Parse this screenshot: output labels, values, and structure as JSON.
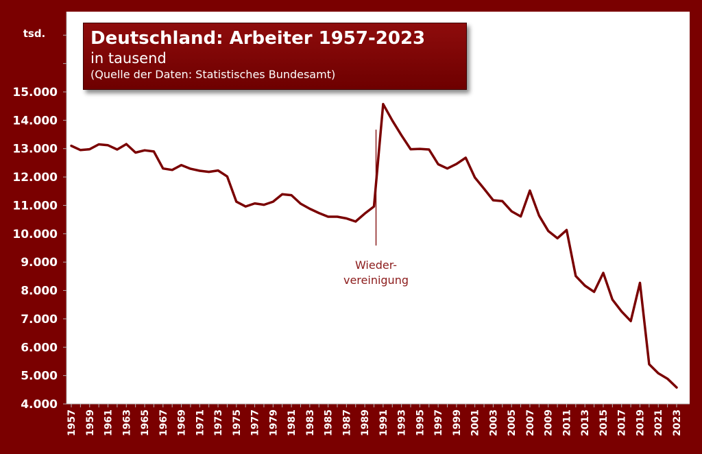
{
  "title_box": {
    "title": "Deutschland: Arbeiter 1957-2023",
    "subtitle": "in tausend",
    "source": "(Quelle der Daten: Statistisches Bundesamt)"
  },
  "colors": {
    "frame": "#7a0000",
    "line": "#7a0000",
    "plot_background": "#ffffff",
    "annotation_text": "#8b1a1a"
  },
  "chart_data": {
    "type": "line",
    "title": "Deutschland: Arbeiter 1957-2023",
    "subtitle": "in tausend",
    "source": "(Quelle der Daten: Statistisches Bundesamt)",
    "ylabel": "tsd.",
    "xlabel": "",
    "ylim": [
      4000,
      15000
    ],
    "yticks": [
      4000,
      5000,
      6000,
      7000,
      8000,
      9000,
      10000,
      11000,
      12000,
      13000,
      14000,
      15000
    ],
    "ytick_labels": [
      "4.000",
      "5.000",
      "6.000",
      "7.000",
      "8.000",
      "9.000",
      "10.000",
      "11.000",
      "12.000",
      "13.000",
      "14.000",
      "15.000"
    ],
    "xlim": [
      1957,
      2023
    ],
    "xtick_labels": [
      "1957",
      "1959",
      "1961",
      "1963",
      "1965",
      "1967",
      "1969",
      "1971",
      "1973",
      "1975",
      "1977",
      "1979",
      "1981",
      "1983",
      "1985",
      "1987",
      "1989",
      "1991",
      "1993",
      "1995",
      "1997",
      "1999",
      "2001",
      "2003",
      "2005",
      "2007",
      "2009",
      "2011",
      "2013",
      "2015",
      "2017",
      "2019",
      "2021",
      "2023"
    ],
    "grid": false,
    "legend": "none",
    "series": [
      {
        "x": [
          1957,
          1958,
          1959,
          1960,
          1961,
          1962,
          1963,
          1964,
          1965,
          1966,
          1967,
          1968,
          1969,
          1970,
          1971,
          1972,
          1973,
          1974,
          1975,
          1976,
          1977,
          1978,
          1979,
          1980,
          1981,
          1982,
          1983,
          1984,
          1985,
          1986,
          1987,
          1988,
          1989,
          1990,
          1991,
          1992,
          1993,
          1994,
          1995,
          1996,
          1997,
          1998,
          1999,
          2000,
          2001,
          2002,
          2003,
          2004,
          2005,
          2006,
          2007,
          2008,
          2009,
          2010,
          2011,
          2012,
          2013,
          2014,
          2015,
          2016,
          2017,
          2018,
          2019,
          2020,
          2021,
          2022,
          2023
        ],
        "values": [
          13100,
          12950,
          12980,
          13150,
          13120,
          12970,
          13160,
          12860,
          12940,
          12900,
          12300,
          12250,
          12420,
          12290,
          12220,
          12180,
          12230,
          12020,
          11130,
          10960,
          11070,
          11020,
          11130,
          11390,
          11360,
          11060,
          10880,
          10730,
          10600,
          10600,
          10540,
          10430,
          10710,
          10960,
          14570,
          13990,
          13470,
          12980,
          12990,
          12970,
          12450,
          12300,
          12460,
          12680,
          11980,
          11590,
          11180,
          11150,
          10790,
          10610,
          11520,
          10640,
          10100,
          9840,
          10130,
          8510,
          8170,
          7950,
          8620,
          7680,
          7260,
          6920,
          8270,
          5400,
          5080,
          4890,
          4580
        ]
      }
    ],
    "annotations": [
      {
        "x": 1990,
        "lines": [
          "Wieder-",
          "vereinigung"
        ]
      }
    ]
  }
}
